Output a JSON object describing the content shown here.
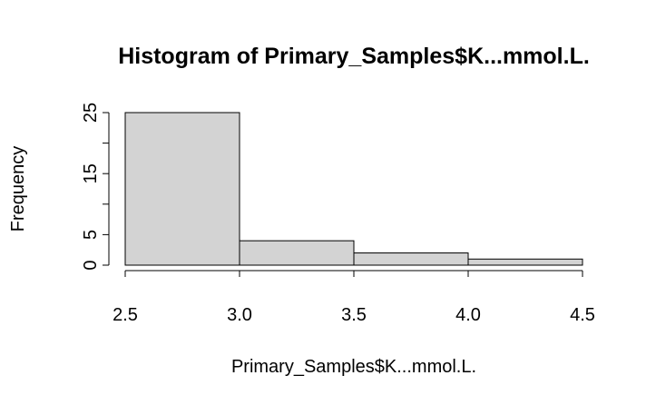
{
  "chart_data": {
    "type": "bar",
    "title": "Histogram of Primary_Samples$K...mmol.L.",
    "xlabel": "Primary_Samples$K...mmol.L.",
    "ylabel": "Frequency",
    "bins": [
      {
        "start": 2.5,
        "end": 3.0,
        "count": 25
      },
      {
        "start": 3.0,
        "end": 3.5,
        "count": 4
      },
      {
        "start": 3.5,
        "end": 4.0,
        "count": 2
      },
      {
        "start": 4.0,
        "end": 4.5,
        "count": 1
      }
    ],
    "xlim": [
      2.5,
      4.5
    ],
    "ylim": [
      0,
      25
    ],
    "xticks": [
      "2.5",
      "3.0",
      "3.5",
      "4.0",
      "4.5"
    ],
    "yticks": [
      "0",
      "5",
      "15",
      "25"
    ],
    "y_minor_ticks": [
      10,
      20
    ],
    "bar_fill": "#d3d3d3",
    "bar_stroke": "#000000",
    "grid": false,
    "legend": "none"
  }
}
